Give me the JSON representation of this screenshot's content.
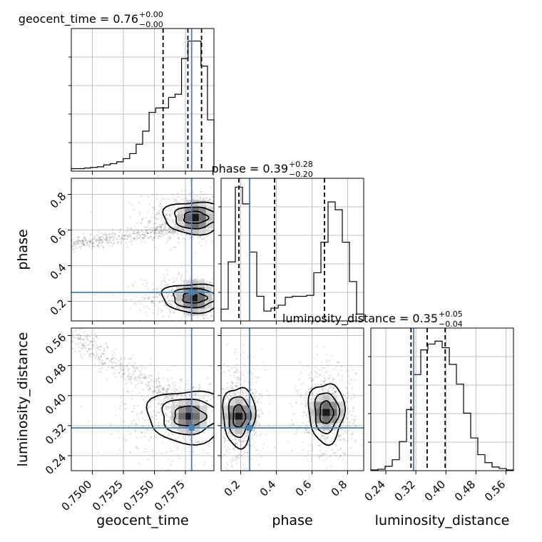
{
  "chart_data": {
    "type": "corner",
    "truth_color": "#4682b4",
    "hist_color": "#000000",
    "params": [
      {
        "name": "geocent_time",
        "axis_label": "geocent_time",
        "title": {
          "text": "geocent_time = 0.76",
          "plus": "+0.00",
          "minus": "−0.00"
        },
        "range": [
          0.7483,
          0.7598
        ],
        "ticks": [
          0.75,
          0.7525,
          0.755,
          0.7575
        ],
        "tick_labels": [
          "0.7500",
          "0.7525",
          "0.7550",
          "0.7575"
        ],
        "truth": 0.758,
        "quantiles": [
          0.7557,
          0.7577,
          0.7588
        ],
        "hist": [
          0.4,
          0.4,
          0.5,
          0.6,
          0.7,
          1.0,
          1.2,
          1.5,
          2.0,
          2.8,
          4.3,
          6.4,
          9.4,
          10.1,
          10.1,
          11.8,
          12.3,
          18.0,
          20.8,
          20.8,
          16.8,
          8.2
        ],
        "hist_max": 22.8
      },
      {
        "name": "phase",
        "axis_label": "phase",
        "title": {
          "text": "phase = 0.39",
          "plus": "+0.28",
          "minus": "−0.20"
        },
        "range": [
          0.09,
          0.89
        ],
        "ticks": [
          0.2,
          0.4,
          0.6,
          0.8
        ],
        "tick_labels": [
          "0.2",
          "0.4",
          "0.6",
          "0.8"
        ],
        "truth": 0.25,
        "quantiles": [
          0.19,
          0.39,
          0.67
        ],
        "hist": [
          1.2,
          6.0,
          13.6,
          11.9,
          7.0,
          2.5,
          1.0,
          1.3,
          1.6,
          2.4,
          2.5,
          2.5,
          2.6,
          4.9,
          8.0,
          12.1,
          11.3,
          8.0,
          4.0,
          0.7
        ],
        "hist_max": 14.5
      },
      {
        "name": "luminosity_distance",
        "axis_label": "luminosity_distance",
        "title": {
          "text": "luminosity_distance = 0.35",
          "plus": "+0.05",
          "minus": "−0.04"
        },
        "range": [
          0.2,
          0.58
        ],
        "ticks": [
          0.24,
          0.32,
          0.4,
          0.48,
          0.56
        ],
        "tick_labels": [
          "0.24",
          "0.32",
          "0.40",
          "0.48",
          "0.56"
        ],
        "truth": 0.314,
        "quantiles": [
          0.307,
          0.35,
          0.398
        ],
        "hist": [
          0.1,
          0.2,
          0.6,
          1.5,
          4.0,
          8.4,
          13.2,
          16.6,
          17.4,
          17.8,
          16.9,
          14.6,
          11.9,
          7.9,
          4.5,
          2.2,
          1.1,
          0.5,
          0.3,
          0.1
        ],
        "hist_max": 19.6
      }
    ],
    "pairs": [
      {
        "x": "geocent_time",
        "y": "phase",
        "yticks": [
          0.2,
          0.4,
          0.6,
          0.8
        ],
        "ytick_labels": [
          "0.2",
          "0.4",
          "0.6",
          "0.8"
        ],
        "truth_x": 0.758,
        "truth_y": 0.25,
        "modes": [
          {
            "cx": 0.7583,
            "cy": 0.67,
            "sx": 0.0013,
            "sy": 0.045
          },
          {
            "cx": 0.7582,
            "cy": 0.22,
            "sx": 0.0013,
            "sy": 0.04
          }
        ]
      },
      {
        "x": "geocent_time",
        "y": "luminosity_distance",
        "yticks": [
          0.24,
          0.32,
          0.4,
          0.48,
          0.56
        ],
        "ytick_labels": [
          "0.24",
          "0.32",
          "0.40",
          "0.48",
          "0.56"
        ],
        "truth_x": 0.758,
        "truth_y": 0.314,
        "modes": [
          {
            "cx": 0.7578,
            "cy": 0.345,
            "sx": 0.0017,
            "sy": 0.035
          }
        ]
      },
      {
        "x": "phase",
        "y": "luminosity_distance",
        "yticks": [
          0.24,
          0.32,
          0.4,
          0.48,
          0.56
        ],
        "ytick_labels": [
          "0.24",
          "0.32",
          "0.40",
          "0.48",
          "0.56"
        ],
        "truth_x": 0.25,
        "truth_y": 0.314,
        "modes": [
          {
            "cx": 0.19,
            "cy": 0.345,
            "sx": 0.045,
            "sy": 0.04
          },
          {
            "cx": 0.68,
            "cy": 0.355,
            "sx": 0.05,
            "sy": 0.04
          }
        ]
      }
    ],
    "grid": true
  }
}
